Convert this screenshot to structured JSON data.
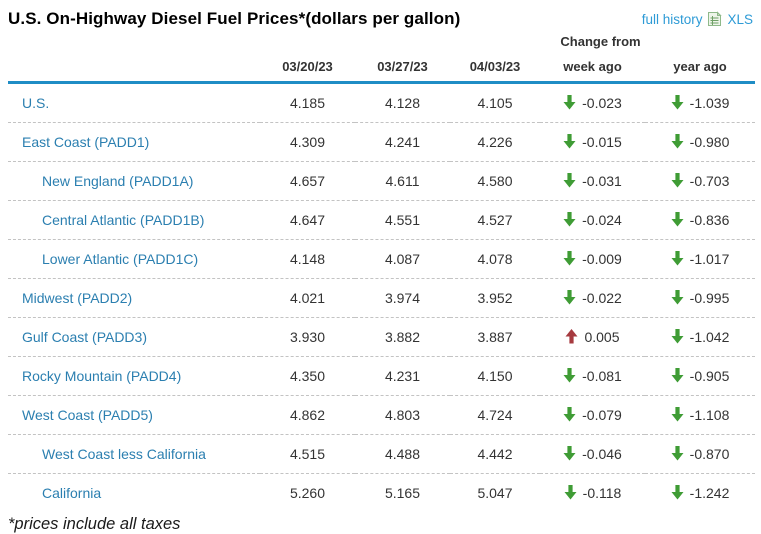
{
  "title": "U.S. On-Highway Diesel Fuel Prices*(dollars per gallon)",
  "links": {
    "full_history": "full history",
    "xls": "XLS"
  },
  "table": {
    "change_from_label": "Change from",
    "columns": [
      "03/20/23",
      "03/27/23",
      "04/03/23",
      "week ago",
      "year ago"
    ],
    "rows": [
      {
        "label": "U.S.",
        "indent": 0,
        "prices": [
          "4.185",
          "4.128",
          "4.105"
        ],
        "week": {
          "dir": "down",
          "value": "-0.023"
        },
        "year": {
          "dir": "down",
          "value": "-1.039"
        }
      },
      {
        "label": "East Coast (PADD1)",
        "indent": 0,
        "prices": [
          "4.309",
          "4.241",
          "4.226"
        ],
        "week": {
          "dir": "down",
          "value": "-0.015"
        },
        "year": {
          "dir": "down",
          "value": "-0.980"
        }
      },
      {
        "label": "New England (PADD1A)",
        "indent": 1,
        "prices": [
          "4.657",
          "4.611",
          "4.580"
        ],
        "week": {
          "dir": "down",
          "value": "-0.031"
        },
        "year": {
          "dir": "down",
          "value": "-0.703"
        }
      },
      {
        "label": "Central Atlantic (PADD1B)",
        "indent": 1,
        "prices": [
          "4.647",
          "4.551",
          "4.527"
        ],
        "week": {
          "dir": "down",
          "value": "-0.024"
        },
        "year": {
          "dir": "down",
          "value": "-0.836"
        }
      },
      {
        "label": "Lower Atlantic (PADD1C)",
        "indent": 1,
        "prices": [
          "4.148",
          "4.087",
          "4.078"
        ],
        "week": {
          "dir": "down",
          "value": "-0.009"
        },
        "year": {
          "dir": "down",
          "value": "-1.017"
        }
      },
      {
        "label": "Midwest (PADD2)",
        "indent": 0,
        "prices": [
          "4.021",
          "3.974",
          "3.952"
        ],
        "week": {
          "dir": "down",
          "value": "-0.022"
        },
        "year": {
          "dir": "down",
          "value": "-0.995"
        }
      },
      {
        "label": "Gulf Coast (PADD3)",
        "indent": 0,
        "prices": [
          "3.930",
          "3.882",
          "3.887"
        ],
        "week": {
          "dir": "up",
          "value": "0.005"
        },
        "year": {
          "dir": "down",
          "value": "-1.042"
        }
      },
      {
        "label": "Rocky Mountain (PADD4)",
        "indent": 0,
        "prices": [
          "4.350",
          "4.231",
          "4.150"
        ],
        "week": {
          "dir": "down",
          "value": "-0.081"
        },
        "year": {
          "dir": "down",
          "value": "-0.905"
        }
      },
      {
        "label": "West Coast (PADD5)",
        "indent": 0,
        "prices": [
          "4.862",
          "4.803",
          "4.724"
        ],
        "week": {
          "dir": "down",
          "value": "-0.079"
        },
        "year": {
          "dir": "down",
          "value": "-1.108"
        }
      },
      {
        "label": "West Coast less California",
        "indent": 1,
        "prices": [
          "4.515",
          "4.488",
          "4.442"
        ],
        "week": {
          "dir": "down",
          "value": "-0.046"
        },
        "year": {
          "dir": "down",
          "value": "-0.870"
        }
      },
      {
        "label": "California",
        "indent": 1,
        "prices": [
          "5.260",
          "5.165",
          "5.047"
        ],
        "week": {
          "dir": "down",
          "value": "-0.118"
        },
        "year": {
          "dir": "down",
          "value": "-1.242"
        }
      }
    ]
  },
  "footnote": "*prices include all taxes",
  "colors": {
    "arrow_down": "#3f9c35",
    "arrow_up": "#a63a3f",
    "link": "#2e9bd6",
    "region_link": "#2b7fb0",
    "header_rule": "#1f8dc5"
  }
}
